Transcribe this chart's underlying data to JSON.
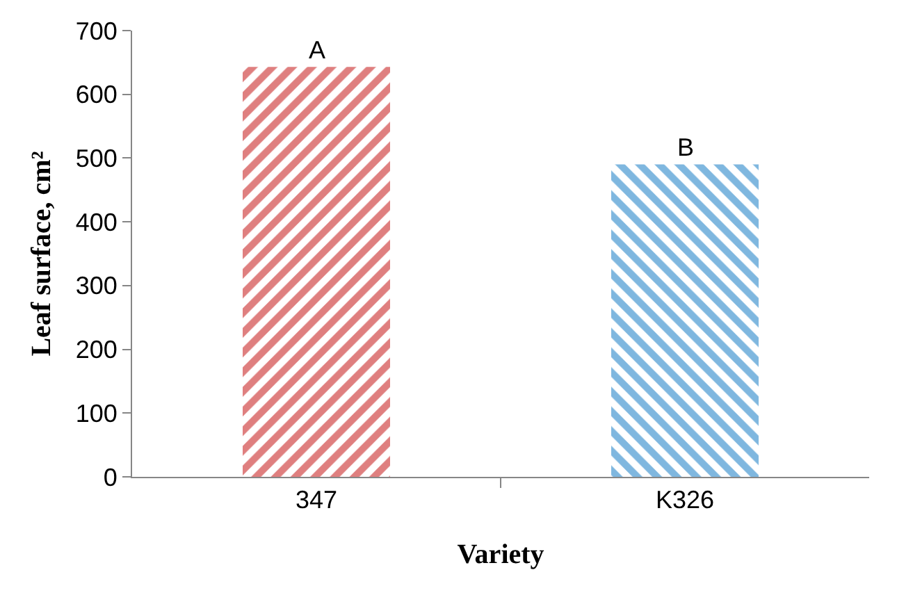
{
  "chart_data": {
    "type": "bar",
    "xlabel": "Variety",
    "ylabel": "Leaf surface, cm²",
    "categories": [
      "347",
      "K326"
    ],
    "values": [
      643,
      490
    ],
    "colors": [
      "#c00000",
      "#0070c0"
    ],
    "ylim": [
      0,
      700
    ],
    "yticks": [
      0,
      100,
      200,
      300,
      400,
      500,
      600,
      700
    ],
    "annotations": [
      {
        "text": "A",
        "x": "347",
        "y": 643
      },
      {
        "text": "B",
        "x": "K326",
        "y": 490
      }
    ]
  }
}
